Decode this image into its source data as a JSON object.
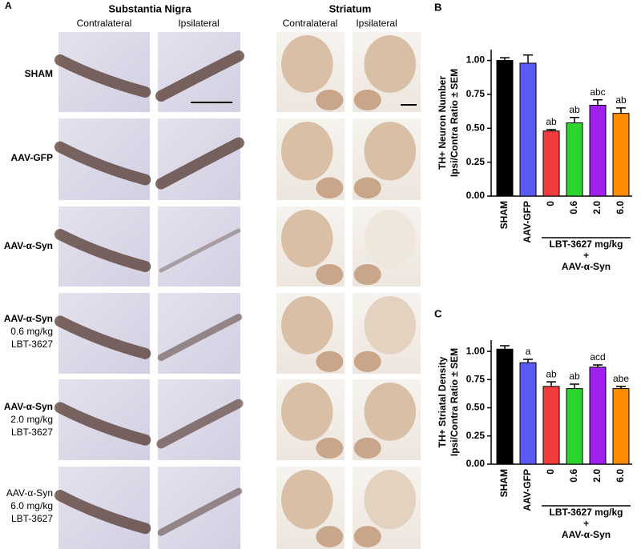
{
  "panel_a": {
    "label": "A",
    "sn_title": "Substantia Nigra",
    "st_title": "Striatum",
    "sn_columns": [
      "Contralateral",
      "Ipsilateral"
    ],
    "st_columns": [
      "Contralateral",
      "Ipsilateral"
    ],
    "rows": [
      {
        "lines": [
          "SHAM"
        ],
        "bold": true
      },
      {
        "lines": [
          "AAV-GFP"
        ],
        "bold": true
      },
      {
        "lines": [
          "AAV-α-Syn"
        ],
        "bold": true
      },
      {
        "lines": [
          "AAV-α-Syn",
          "0.6 mg/kg",
          "LBT-3627"
        ],
        "bold": true
      },
      {
        "lines": [
          "AAV-α-Syn",
          "2.0 mg/kg",
          "LBT-3627"
        ],
        "bold": true
      },
      {
        "lines": [
          "AAV-α-Syn",
          "6.0 mg/kg",
          "LBT-3627"
        ],
        "bold": false
      }
    ]
  },
  "chart_data": [
    {
      "type": "bar",
      "panel": "B",
      "ylabel": [
        "TH+ Neuron Number",
        "Ipsi/Contra Ratio ± SEM"
      ],
      "categories": [
        "SHAM",
        "AAV-GFP",
        "0",
        "0.6",
        "2.0",
        "6.0"
      ],
      "values": [
        1.0,
        0.98,
        0.48,
        0.54,
        0.67,
        0.61
      ],
      "errors": [
        0.02,
        0.06,
        0.01,
        0.04,
        0.04,
        0.04
      ],
      "letters": [
        null,
        null,
        "ab",
        "ab",
        "abc",
        "ab"
      ],
      "colors": [
        "#000000",
        "#5a5af5",
        "#f53c3c",
        "#2ed42e",
        "#a020f0",
        "#ff8c00"
      ],
      "group_label": [
        "LBT-3627 mg/kg",
        "+",
        "AAV-α-Syn"
      ],
      "ylim": [
        0,
        1.08
      ],
      "yticks": [
        {
          "value": 0,
          "label": "0.00"
        },
        {
          "value": 0.25,
          "label": "0.25"
        },
        {
          "value": 0.5,
          "label": "0.50"
        },
        {
          "value": 0.75,
          "label": "0.75"
        },
        {
          "value": 1,
          "label": "1.00"
        }
      ]
    },
    {
      "type": "bar",
      "panel": "C",
      "ylabel": [
        "TH+ Striatal Density",
        "Ipsi/Contra Ratio ± SEM"
      ],
      "categories": [
        "SHAM",
        "AAV-GFP",
        "0",
        "0.6",
        "2.0",
        "6.0"
      ],
      "values": [
        1.02,
        0.9,
        0.69,
        0.67,
        0.86,
        0.67
      ],
      "errors": [
        0.03,
        0.03,
        0.04,
        0.04,
        0.02,
        0.02
      ],
      "letters": [
        null,
        "a",
        "ab",
        "ab",
        "acd",
        "abe"
      ],
      "colors": [
        "#000000",
        "#5a5af5",
        "#f53c3c",
        "#2ed42e",
        "#a020f0",
        "#ff8c00"
      ],
      "group_label": [
        "LBT-3627 mg/kg",
        "+",
        "AAV-α-Syn"
      ],
      "ylim": [
        0,
        1.1
      ],
      "yticks": [
        {
          "value": 0,
          "label": "0.00"
        },
        {
          "value": 0.25,
          "label": "0.25"
        },
        {
          "value": 0.5,
          "label": "0.50"
        },
        {
          "value": 0.75,
          "label": "0.75"
        },
        {
          "value": 1,
          "label": "1.00"
        }
      ]
    }
  ]
}
